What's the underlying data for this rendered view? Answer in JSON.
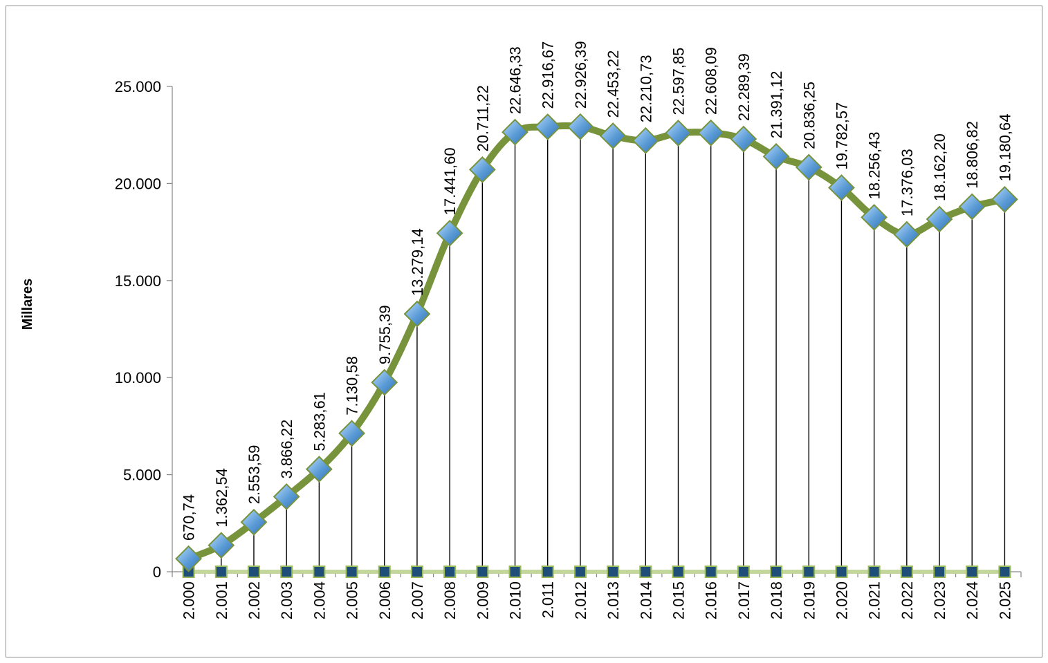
{
  "chart_data": {
    "type": "line",
    "title": "",
    "xlabel": "",
    "ylabel": "Millares",
    "ylim": [
      0,
      25000
    ],
    "ytick_values": [
      0,
      5000,
      10000,
      15000,
      20000,
      25000
    ],
    "ytick_labels": [
      "0",
      "5.000",
      "10.000",
      "15.000",
      "20.000",
      "25.000"
    ],
    "grid": false,
    "legend": "none",
    "categories": [
      "2.000",
      "2.001",
      "2.002",
      "2.003",
      "2.004",
      "2.005",
      "2.006",
      "2.007",
      "2.008",
      "2.009",
      "2.010",
      "2.011",
      "2.012",
      "2.013",
      "2.014",
      "2.015",
      "2.016",
      "2.017",
      "2.018",
      "2.019",
      "2.020",
      "2.021",
      "2.022",
      "2.023",
      "2.024",
      "2.025"
    ],
    "series": [
      {
        "values": [
          670.74,
          1362.54,
          2553.59,
          3866.22,
          5283.61,
          7130.58,
          9755.39,
          13279.14,
          17441.6,
          20711.22,
          22646.33,
          22916.67,
          22926.39,
          22453.22,
          22210.73,
          22597.85,
          22608.09,
          22289.39,
          21391.12,
          20836.25,
          19782.57,
          18256.43,
          17376.03,
          18162.2,
          18806.82,
          19180.64
        ],
        "data_labels": [
          "670,74",
          "1.362,54",
          "2.553,59",
          "3.866,22",
          "5.283,61",
          "7.130,58",
          "9.755,39",
          "13.279,14",
          "17.441,60",
          "20.711,22",
          "22.646,33",
          "22.916,67",
          "22.926,39",
          "22.453,22",
          "22.210,73",
          "22.597,85",
          "22.608,09",
          "22.289,39",
          "21.391,12",
          "20.836,25",
          "19.782,57",
          "18.256,43",
          "17.376,03",
          "18.162,20",
          "18.806,82",
          "19.180,64"
        ],
        "line_color": "#77933c",
        "marker": "diamond",
        "marker_color": "#5b9bd5"
      },
      {
        "values": [
          0,
          0,
          0,
          0,
          0,
          0,
          0,
          0,
          0,
          0,
          0,
          0,
          0,
          0,
          0,
          0,
          0,
          0,
          0,
          0,
          0,
          0,
          0,
          0,
          0,
          0
        ],
        "line_color": "#c3d69b",
        "marker": "square",
        "marker_color": "#1f4e79"
      }
    ],
    "drop_lines": true
  }
}
